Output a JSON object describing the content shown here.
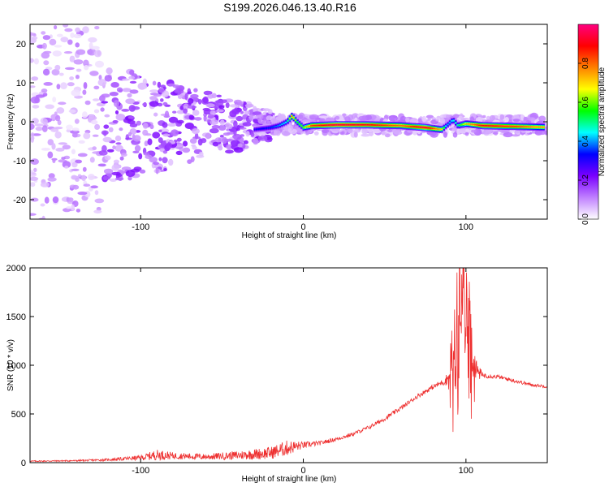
{
  "title": "S199.2026.046.13.40.R16",
  "chart_data": [
    {
      "type": "heatmap",
      "name": "spectrogram",
      "xlabel": "Height of straight line (km)",
      "ylabel": "Frequency (Hz)",
      "xlim": [
        -168,
        150
      ],
      "ylim": [
        -25,
        25
      ],
      "xticks": [
        "-100",
        "0",
        "100"
      ],
      "xtick_values": [
        -100,
        0,
        100
      ],
      "yticks": [
        "-20",
        "-10",
        "0",
        "10",
        "20"
      ],
      "ytick_values": [
        -20,
        -10,
        0,
        10,
        20
      ],
      "colorbar": {
        "label": "Normalized spectral amplitude",
        "range": [
          0,
          1
        ],
        "ticks": [
          "0.0",
          "0.2",
          "0.4",
          "0.6",
          "0.8"
        ],
        "tick_values": [
          0.0,
          0.2,
          0.4,
          0.6,
          0.8
        ],
        "colors": [
          "#ffffff",
          "#c080ff",
          "#7a00ff",
          "#0000ff",
          "#00ffff",
          "#00ff00",
          "#ffff00",
          "#ff8000",
          "#ff0000",
          "#ff0080"
        ]
      },
      "ridge": {
        "x": [
          -30,
          -20,
          -15,
          -10,
          -7,
          -4,
          0,
          5,
          20,
          40,
          60,
          75,
          85,
          88,
          92,
          95,
          100,
          110,
          130,
          148
        ],
        "freq": [
          -2,
          -1.5,
          -1,
          0,
          1.5,
          0,
          -1.5,
          -1,
          -0.8,
          -0.8,
          -1,
          -1.5,
          -2,
          -1,
          0.5,
          -1,
          -0.5,
          -1,
          -1.2,
          -1.4
        ],
        "amp": [
          0.3,
          0.35,
          0.4,
          0.45,
          0.8,
          0.55,
          0.6,
          0.85,
          0.95,
          0.9,
          0.8,
          0.95,
          0.7,
          0.4,
          0.45,
          0.5,
          0.7,
          0.9,
          0.85,
          0.75
        ]
      }
    },
    {
      "type": "line",
      "name": "snr",
      "xlabel": "Height of straight line (km)",
      "ylabel": "SNR (10 * v/v)",
      "xlim": [
        -168,
        150
      ],
      "ylim": [
        0,
        2000
      ],
      "xticks": [
        "-100",
        "0",
        "100"
      ],
      "xtick_values": [
        -100,
        0,
        100
      ],
      "yticks": [
        "0",
        "500",
        "1000",
        "1500",
        "2000"
      ],
      "ytick_values": [
        0,
        500,
        1000,
        1500,
        2000
      ],
      "color": "#ee3030",
      "series": [
        {
          "name": "SNR",
          "x": [
            -168,
            -140,
            -120,
            -100,
            -90,
            -80,
            -60,
            -40,
            -20,
            -10,
            0,
            10,
            20,
            30,
            40,
            50,
            60,
            70,
            80,
            85,
            88,
            90,
            92,
            95,
            98,
            100,
            103,
            106,
            110,
            120,
            130,
            140,
            150
          ],
          "y": [
            15,
            20,
            30,
            50,
            80,
            70,
            60,
            75,
            100,
            150,
            180,
            200,
            240,
            290,
            360,
            450,
            560,
            680,
            780,
            820,
            850,
            900,
            1000,
            1200,
            1500,
            1700,
            1100,
            950,
            900,
            880,
            840,
            800,
            780
          ],
          "spread": [
            12,
            15,
            25,
            50,
            110,
            70,
            60,
            90,
            130,
            160,
            70,
            45,
            40,
            40,
            40,
            45,
            45,
            45,
            50,
            60,
            120,
            350,
            700,
            900,
            1100,
            1200,
            700,
            250,
            60,
            40,
            40,
            30,
            30
          ]
        }
      ]
    }
  ]
}
